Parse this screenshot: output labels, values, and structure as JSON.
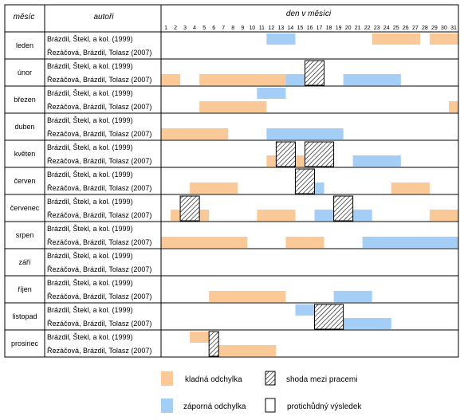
{
  "headers": {
    "month": "měsíc",
    "authors": "autoři",
    "day": "den v měsíci"
  },
  "days": [
    "1",
    "2",
    "3",
    "4",
    "5",
    "6",
    "7",
    "8",
    "9",
    "10",
    "11",
    "12",
    "13",
    "14",
    "15",
    "16",
    "17",
    "18",
    "19",
    "20",
    "21",
    "22",
    "23",
    "24",
    "25",
    "26",
    "27",
    "28",
    "29",
    "30",
    "31"
  ],
  "authors": [
    "Brázdil, Štekl, a kol. (1999)",
    "Řezáčová, Brázdil, Tolasz (2007)"
  ],
  "colors": {
    "positive": "#fbc898",
    "negative": "#a4cef5",
    "border": "#000000"
  },
  "months": [
    {
      "name": "leden",
      "bars": [
        {
          "author": 0,
          "type": "negative",
          "from": 12,
          "to": 14
        },
        {
          "author": 0,
          "type": "positive",
          "from": 23,
          "to": 27
        },
        {
          "author": 0,
          "type": "positive",
          "from": 29,
          "to": 31
        }
      ],
      "hatch": []
    },
    {
      "name": "únor",
      "bars": [
        {
          "author": 1,
          "type": "positive",
          "from": 1,
          "to": 2
        },
        {
          "author": 1,
          "type": "positive",
          "from": 5,
          "to": 13
        },
        {
          "author": 1,
          "type": "negative",
          "from": 14,
          "to": 17
        },
        {
          "author": 1,
          "type": "negative",
          "from": 20,
          "to": 25
        }
      ],
      "hatch": [
        {
          "from": 16,
          "to": 17
        }
      ]
    },
    {
      "name": "březen",
      "bars": [
        {
          "author": 0,
          "type": "negative",
          "from": 11,
          "to": 13
        },
        {
          "author": 1,
          "type": "positive",
          "from": 5,
          "to": 11
        },
        {
          "author": 1,
          "type": "positive",
          "from": 31,
          "to": 31
        }
      ],
      "hatch": []
    },
    {
      "name": "duben",
      "bars": [
        {
          "author": 1,
          "type": "positive",
          "from": 1,
          "to": 7
        },
        {
          "author": 1,
          "type": "negative",
          "from": 12,
          "to": 19
        }
      ],
      "hatch": []
    },
    {
      "name": "květen",
      "bars": [
        {
          "author": 0,
          "type": "positive",
          "from": 13,
          "to": 14
        },
        {
          "author": 0,
          "type": "positive",
          "from": 16,
          "to": 18
        },
        {
          "author": 1,
          "type": "positive",
          "from": 12,
          "to": 18
        },
        {
          "author": 1,
          "type": "negative",
          "from": 21,
          "to": 25
        }
      ],
      "hatch": [
        {
          "from": 13,
          "to": 14
        },
        {
          "from": 16,
          "to": 18
        }
      ]
    },
    {
      "name": "červen",
      "bars": [
        {
          "author": 0,
          "type": "negative",
          "from": 15,
          "to": 16
        },
        {
          "author": 1,
          "type": "positive",
          "from": 4,
          "to": 8
        },
        {
          "author": 1,
          "type": "negative",
          "from": 15,
          "to": 17
        },
        {
          "author": 1,
          "type": "positive",
          "from": 25,
          "to": 28
        }
      ],
      "hatch": [
        {
          "from": 15,
          "to": 16
        }
      ]
    },
    {
      "name": "červenec",
      "bars": [
        {
          "author": 0,
          "type": "positive",
          "from": 3,
          "to": 4
        },
        {
          "author": 0,
          "type": "negative",
          "from": 19,
          "to": 20
        },
        {
          "author": 1,
          "type": "positive",
          "from": 2,
          "to": 5
        },
        {
          "author": 1,
          "type": "positive",
          "from": 11,
          "to": 14
        },
        {
          "author": 1,
          "type": "negative",
          "from": 17,
          "to": 22
        },
        {
          "author": 1,
          "type": "positive",
          "from": 29,
          "to": 31
        }
      ],
      "hatch": [
        {
          "from": 3,
          "to": 4
        },
        {
          "from": 19,
          "to": 20
        }
      ]
    },
    {
      "name": "srpen",
      "bars": [
        {
          "author": 1,
          "type": "positive",
          "from": 1,
          "to": 9
        },
        {
          "author": 1,
          "type": "positive",
          "from": 14,
          "to": 17
        },
        {
          "author": 1,
          "type": "negative",
          "from": 22,
          "to": 31
        }
      ],
      "hatch": []
    },
    {
      "name": "září",
      "bars": [],
      "hatch": []
    },
    {
      "name": "říjen",
      "bars": [
        {
          "author": 1,
          "type": "positive",
          "from": 6,
          "to": 13
        },
        {
          "author": 1,
          "type": "negative",
          "from": 19,
          "to": 22
        }
      ],
      "hatch": []
    },
    {
      "name": "listopad",
      "bars": [
        {
          "author": 0,
          "type": "negative",
          "from": 15,
          "to": 16
        },
        {
          "author": 1,
          "type": "negative",
          "from": 17,
          "to": 24
        }
      ],
      "hatch": [
        {
          "from": 17,
          "to": 19
        }
      ]
    },
    {
      "name": "prosinec",
      "bars": [
        {
          "author": 0,
          "type": "positive",
          "from": 4,
          "to": 5
        },
        {
          "author": 1,
          "type": "positive",
          "from": 6,
          "to": 12
        }
      ],
      "hatch": [
        {
          "from": 6,
          "to": 6
        }
      ]
    }
  ],
  "legend": {
    "positive": "kladná odchylka",
    "negative": "záporná odchylka",
    "agreement": "shoda mezi pracemi",
    "contradiction": "protichůdný výsledek"
  }
}
